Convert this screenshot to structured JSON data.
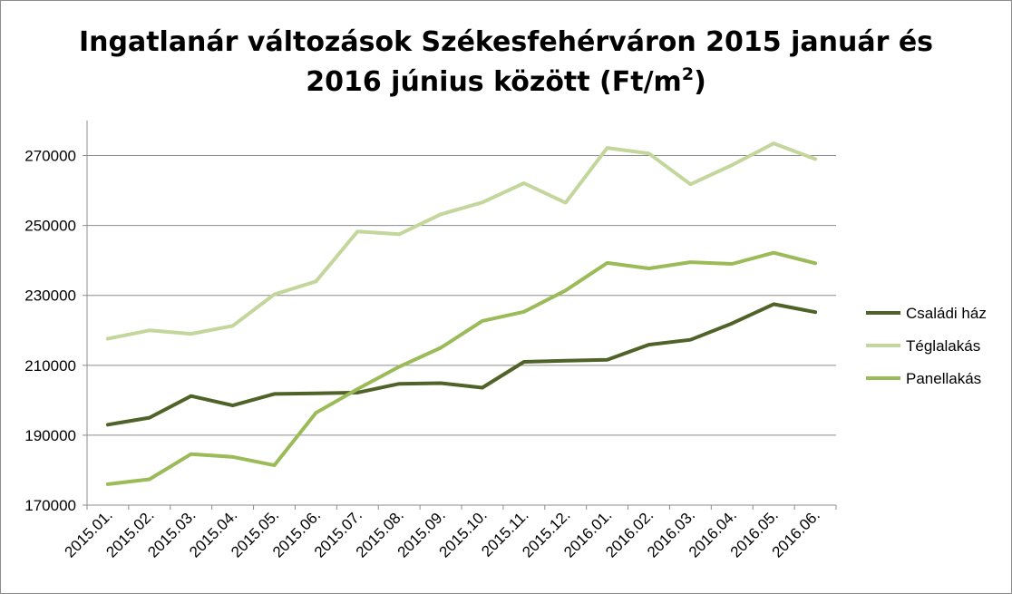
{
  "chart_data": {
    "type": "line",
    "title_line1": "Ingatlanár változások Székesfehérváron 2015 január és",
    "title_line2_pre": "2016 június között (Ft/m",
    "title_sup": "2",
    "title_line2_post": ")",
    "categories": [
      "2015.01.",
      "2015.02.",
      "2015.03.",
      "2015.04.",
      "2015.05.",
      "2015.06.",
      "2015.07.",
      "2015.08.",
      "2015.09.",
      "2015.10.",
      "2015.11.",
      "2015.12.",
      "2016.01.",
      "2016.02.",
      "2016.03.",
      "2016.04.",
      "2016.05.",
      "2016.06."
    ],
    "ylim": [
      170000,
      280000
    ],
    "yticks": [
      170000,
      190000,
      210000,
      230000,
      250000,
      270000
    ],
    "grid": true,
    "legend_position": "right",
    "series": [
      {
        "name": "Családi ház",
        "color": "#4f6228",
        "values": [
          193000,
          195000,
          201200,
          198500,
          201800,
          202000,
          202200,
          204700,
          204900,
          203600,
          211000,
          211300,
          211600,
          215900,
          217300,
          222000,
          227500,
          225200
        ]
      },
      {
        "name": "Téglalakás",
        "color": "#c3d69b",
        "values": [
          217600,
          220000,
          219000,
          221300,
          230300,
          234000,
          248300,
          247500,
          253200,
          256600,
          262100,
          256500,
          272200,
          270600,
          261800,
          267300,
          273500,
          269000
        ]
      },
      {
        "name": "Panellakás",
        "color": "#9bbb59",
        "values": [
          176000,
          177400,
          184600,
          183800,
          181400,
          196400,
          203200,
          209600,
          215000,
          222700,
          225300,
          231400,
          239300,
          237700,
          239500,
          239000,
          242200,
          239200
        ]
      }
    ]
  }
}
